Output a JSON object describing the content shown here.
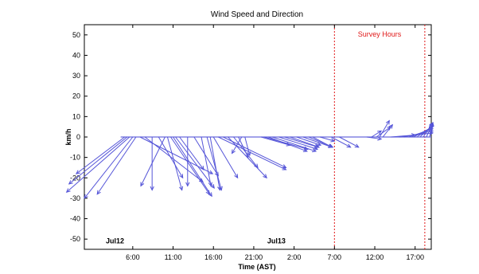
{
  "chart_data": {
    "type": "vector",
    "title": "Wind Speed and Direction",
    "xlabel": "Time (AST)",
    "ylabel": "km/h",
    "ylim": [
      -55,
      55
    ],
    "yticks": [
      50,
      40,
      30,
      20,
      10,
      0,
      -10,
      -20,
      -30,
      -40,
      -50
    ],
    "xticks_hours": [
      6,
      11,
      16,
      21,
      26,
      31,
      36,
      41
    ],
    "xtick_labels": [
      "6:00",
      "11:00",
      "16:00",
      "21:00",
      "2:00",
      "7:00",
      "12:00",
      "17:00"
    ],
    "x_range_hours": [
      0,
      43
    ],
    "grid": false,
    "date_labels": [
      {
        "text": "Jul12",
        "hour": 3.8,
        "y": -52
      },
      {
        "text": "Jul13",
        "hour": 23.8,
        "y": -52
      }
    ],
    "survey": {
      "label": "Survey Hours",
      "start_hour": 31,
      "end_hour": 42.2,
      "color": "#e01818"
    },
    "baseline": {
      "start_hour": 4.5,
      "end_hour": 43,
      "color": "#6a6adc"
    },
    "vector_color": "#5555d8",
    "vectors": [
      {
        "hour": 5.0,
        "u": -1.0,
        "v": -18
      },
      {
        "hour": 5.3,
        "u": -1.2,
        "v": -23
      },
      {
        "hour": 5.6,
        "u": -1.3,
        "v": -27
      },
      {
        "hour": 6.0,
        "u": -1.0,
        "v": -30
      },
      {
        "hour": 6.4,
        "u": -0.8,
        "v": -28
      },
      {
        "hour": 6.9,
        "u": 1.5,
        "v": -18
      },
      {
        "hour": 7.5,
        "u": 1.2,
        "v": -22
      },
      {
        "hour": 8.4,
        "u": 0.0,
        "v": -26
      },
      {
        "hour": 9.2,
        "u": 0.5,
        "v": -20
      },
      {
        "hour": 10.0,
        "u": -0.5,
        "v": -24
      },
      {
        "hour": 10.3,
        "u": 0.3,
        "v": -26
      },
      {
        "hour": 10.7,
        "u": 0.8,
        "v": -28
      },
      {
        "hour": 11.0,
        "u": 0.8,
        "v": -29
      },
      {
        "hour": 11.3,
        "u": 0.8,
        "v": -25
      },
      {
        "hour": 11.8,
        "u": 0.5,
        "v": -16
      },
      {
        "hour": 12.8,
        "u": 0.0,
        "v": -24
      },
      {
        "hour": 13.6,
        "u": 0.5,
        "v": -19
      },
      {
        "hour": 14.5,
        "u": 0.2,
        "v": -24
      },
      {
        "hour": 15.2,
        "u": 0.3,
        "v": -26
      },
      {
        "hour": 15.6,
        "u": 0.2,
        "v": -26
      },
      {
        "hour": 16.0,
        "u": 0.5,
        "v": -20
      },
      {
        "hour": 16.6,
        "u": 1.4,
        "v": -16
      },
      {
        "hour": 17.2,
        "u": 1.3,
        "v": -15
      },
      {
        "hour": 17.8,
        "u": 0.8,
        "v": -20
      },
      {
        "hour": 18.5,
        "u": 0.5,
        "v": -15
      },
      {
        "hour": 19.1,
        "u": 0.2,
        "v": -10
      },
      {
        "hour": 19.5,
        "u": -0.2,
        "v": -8
      },
      {
        "hour": 19.9,
        "u": 0.1,
        "v": -9
      },
      {
        "hour": 21.9,
        "u": 0.6,
        "v": -4
      },
      {
        "hour": 22.3,
        "u": 0.9,
        "v": -6
      },
      {
        "hour": 22.8,
        "u": 0.8,
        "v": -7
      },
      {
        "hour": 23.3,
        "u": 0.9,
        "v": -7
      },
      {
        "hour": 24.1,
        "u": 0.8,
        "v": -6
      },
      {
        "hour": 24.8,
        "u": 0.7,
        "v": -5
      },
      {
        "hour": 25.5,
        "u": 0.6,
        "v": -5
      },
      {
        "hour": 26.3,
        "u": 0.5,
        "v": -4
      },
      {
        "hour": 27.1,
        "u": 0.6,
        "v": -5
      },
      {
        "hour": 27.8,
        "u": 0.5,
        "v": -5
      },
      {
        "hour": 28.3,
        "u": 0.4,
        "v": -5
      },
      {
        "hour": 29.2,
        "u": 0.3,
        "v": -2
      },
      {
        "hour": 30.6,
        "u": 0.4,
        "v": -5
      },
      {
        "hour": 31.6,
        "u": 0.4,
        "v": -5
      },
      {
        "hour": 35.0,
        "u": 0.3,
        "v": -1
      },
      {
        "hour": 35.6,
        "u": 0.2,
        "v": 3
      },
      {
        "hour": 36.2,
        "u": 0.3,
        "v": 5
      },
      {
        "hour": 36.6,
        "u": 0.2,
        "v": 8
      },
      {
        "hour": 37.0,
        "u": 0.2,
        "v": 6
      },
      {
        "hour": 38.0,
        "u": 0.5,
        "v": 1
      },
      {
        "hour": 39.0,
        "u": 1.0,
        "v": 2
      },
      {
        "hour": 39.6,
        "u": 1.3,
        "v": 3
      },
      {
        "hour": 40.2,
        "u": 1.5,
        "v": 4
      },
      {
        "hour": 40.8,
        "u": 1.3,
        "v": 5
      },
      {
        "hour": 41.2,
        "u": 1.2,
        "v": 5
      },
      {
        "hour": 41.6,
        "u": 1.0,
        "v": 6
      },
      {
        "hour": 42.0,
        "u": 0.8,
        "v": 7
      },
      {
        "hour": 42.4,
        "u": 0.6,
        "v": 7
      },
      {
        "hour": 42.8,
        "u": 0.5,
        "v": 7
      }
    ]
  }
}
